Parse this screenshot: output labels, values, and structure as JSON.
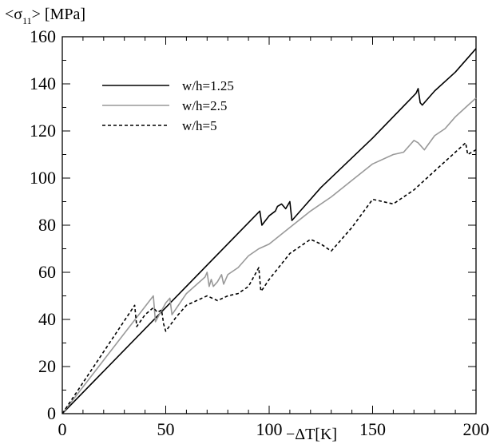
{
  "chart_data": {
    "type": "line",
    "title": "",
    "ylabel_parts": {
      "pre": "<σ",
      "sub": "11",
      "post": "> [MPa]"
    },
    "xlabel": "−ΔT[K]",
    "xlim": [
      0,
      200
    ],
    "ylim": [
      0,
      160
    ],
    "xticks": [
      0,
      50,
      100,
      150,
      200
    ],
    "yticks": [
      0,
      20,
      40,
      60,
      80,
      100,
      120,
      140,
      160
    ],
    "grid": false,
    "legend_position": "top-left",
    "series": [
      {
        "name": "w/h=1.25",
        "color": "#000000",
        "dash": "solid",
        "x": [
          0,
          95.5,
          96.5,
          100,
          103,
          104,
          106,
          108,
          110,
          111,
          125,
          150,
          171,
          172,
          173,
          174,
          180,
          190,
          200
        ],
        "y": [
          0,
          86,
          80,
          84,
          86,
          88,
          89,
          87,
          90,
          82,
          96,
          117,
          136,
          138,
          132,
          131,
          137,
          145,
          155
        ]
      },
      {
        "name": "w/h=2.5",
        "color": "#999999",
        "dash": "solid",
        "x": [
          0,
          44,
          45,
          50,
          52,
          53,
          60,
          69,
          70,
          71,
          72,
          73,
          75,
          77,
          78,
          80,
          85,
          90,
          95,
          100,
          110,
          120,
          130,
          140,
          150,
          160,
          165,
          170,
          172,
          175,
          180,
          185,
          190,
          195,
          200
        ],
        "y": [
          0,
          50,
          39,
          47,
          49,
          42,
          51,
          58,
          60,
          54,
          57,
          54,
          56,
          59,
          55,
          59,
          62,
          67,
          70,
          72,
          79,
          86,
          92,
          99,
          106,
          110,
          111,
          116,
          115,
          112,
          118,
          121,
          126,
          130,
          134
        ]
      },
      {
        "name": "w/h=5",
        "color": "#000000",
        "dash": "dashed",
        "x": [
          0,
          35,
          36,
          40,
          44,
          46,
          48,
          49,
          50,
          55,
          60,
          65,
          70,
          75,
          80,
          85,
          90,
          95,
          96,
          97,
          100,
          110,
          120,
          125,
          130,
          140,
          150,
          160,
          170,
          180,
          190,
          195,
          196,
          200
        ],
        "y": [
          0,
          46,
          37,
          42,
          45,
          43,
          44,
          38,
          35,
          41,
          46,
          48,
          50,
          48,
          50,
          51,
          54,
          62,
          52,
          53,
          57,
          68,
          74,
          72,
          69,
          79,
          91,
          89,
          95,
          103,
          111,
          115,
          110,
          112
        ]
      }
    ]
  }
}
